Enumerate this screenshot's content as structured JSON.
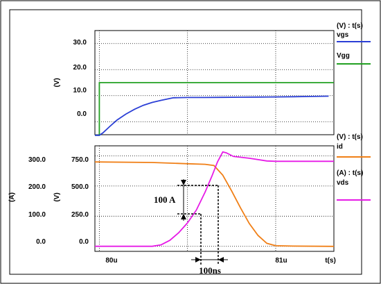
{
  "chart_data": [
    {
      "type": "line",
      "panel": "top",
      "ylabel": "(V)",
      "ylim": [
        -5,
        35
      ],
      "yticks": [
        "30.0",
        "20.0",
        "10.0",
        "0.0"
      ],
      "x": {
        "unit": "us",
        "range": [
          79.975,
          81.33
        ]
      },
      "grid": true,
      "legend_header": "(V) : t(s)",
      "series": [
        {
          "name": "vgs",
          "color": "#2b3fd6",
          "points": [
            [
              79.975,
              -5.2
            ],
            [
              80.0,
              -5.2
            ],
            [
              80.02,
              -4.3
            ],
            [
              80.06,
              -1.8
            ],
            [
              80.1,
              0.6
            ],
            [
              80.15,
              2.9
            ],
            [
              80.2,
              4.8
            ],
            [
              80.25,
              6.3
            ],
            [
              80.3,
              7.4
            ],
            [
              80.35,
              8.2
            ],
            [
              80.42,
              9.2
            ],
            [
              80.5,
              9.3
            ],
            [
              80.6,
              9.3
            ],
            [
              80.7,
              9.35
            ],
            [
              80.8,
              9.4
            ],
            [
              80.9,
              9.45
            ],
            [
              81.0,
              9.5
            ],
            [
              81.1,
              9.6
            ],
            [
              81.2,
              9.7
            ],
            [
              81.3,
              9.8
            ]
          ]
        },
        {
          "name": "Vgg",
          "color": "#22a022",
          "points": [
            [
              79.975,
              -5.2
            ],
            [
              80.0,
              -5.2
            ],
            [
              80.0,
              15.0
            ],
            [
              81.33,
              15.0
            ]
          ]
        }
      ]
    },
    {
      "type": "line",
      "panel": "bottom",
      "ylabel_left": "(A)",
      "ylabel_right": "(V)",
      "ylim_left": [
        -16.7,
        333.3
      ],
      "ylim_right": [
        -41.7,
        833.3
      ],
      "yticks_left": [
        "300.0",
        "200.0",
        "100.0",
        "0.0"
      ],
      "yticks_right": [
        "750.0",
        "500.0",
        "250.0",
        "0.0"
      ],
      "xticks": [
        "80u",
        "81u",
        "t(s)"
      ],
      "x": {
        "unit": "us",
        "range": [
          79.975,
          81.33
        ]
      },
      "grid": true,
      "legend_header_1": "(V) : t(s)",
      "legend_header_2": "(A) : t(s)",
      "series": [
        {
          "name": "id",
          "axis": "right",
          "color": "#f07f16",
          "points": [
            [
              79.975,
              700
            ],
            [
              80.3,
              695
            ],
            [
              80.5,
              685
            ],
            [
              80.6,
              680
            ],
            [
              80.65,
              670
            ],
            [
              80.7,
              590
            ],
            [
              80.75,
              460
            ],
            [
              80.8,
              320
            ],
            [
              80.85,
              190
            ],
            [
              80.9,
              90
            ],
            [
              80.95,
              25
            ],
            [
              81.0,
              5
            ],
            [
              81.1,
              2
            ],
            [
              81.33,
              0
            ]
          ]
        },
        {
          "name": "vds",
          "axis": "left",
          "color": "#e61ae6",
          "points": [
            [
              79.975,
              0
            ],
            [
              80.3,
              0
            ],
            [
              80.35,
              5
            ],
            [
              80.4,
              20
            ],
            [
              80.45,
              45
            ],
            [
              80.5,
              78
            ],
            [
              80.55,
              120
            ],
            [
              80.6,
              180
            ],
            [
              80.64,
              235
            ],
            [
              80.67,
              280
            ],
            [
              80.7,
              313
            ],
            [
              80.72,
              310
            ],
            [
              80.76,
              298
            ],
            [
              80.85,
              292
            ],
            [
              80.95,
              283
            ],
            [
              81.0,
              282
            ],
            [
              81.33,
              282
            ]
          ]
        }
      ],
      "annotations": [
        {
          "text": "100 A",
          "kind": "vertical-span"
        },
        {
          "text": "100ns",
          "kind": "horizontal-span"
        }
      ]
    }
  ]
}
